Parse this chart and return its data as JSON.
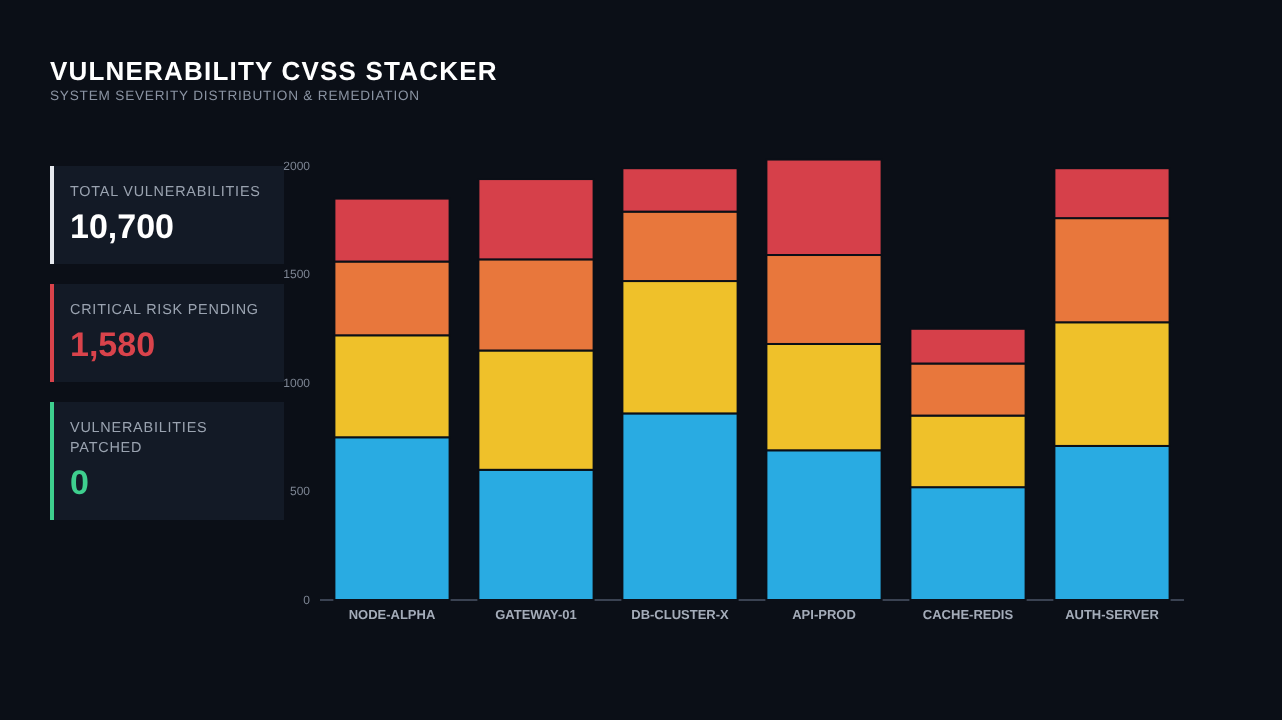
{
  "chart_data": [
    {
      "type": "other",
      "annotations": [
        "TOTAL VULNERABILITIES",
        "10,700",
        "CRITICAL RISK PENDING",
        "1,580",
        "VULNERABILITIES PATCHED",
        "0"
      ]
    },
    {
      "type": "bar",
      "title": "VULNERABILITY CVSS STACKER",
      "subtitle": "SYSTEM SEVERITY DISTRIBUTION & REMEDIATION",
      "categories": [
        "NODE-ALPHA",
        "GATEWAY-01",
        "DB-CLUSTER-X",
        "API-PROD",
        "CACHE-REDIS",
        "AUTH-SERVER"
      ],
      "stacked": true,
      "series": [
        {
          "color": "#29abe2",
          "values": [
            750,
            600,
            860,
            690,
            520,
            710
          ]
        },
        {
          "color": "#efc12a",
          "values": [
            470,
            550,
            610,
            490,
            330,
            570
          ]
        },
        {
          "color": "#e8773c",
          "values": [
            340,
            420,
            320,
            410,
            240,
            480
          ]
        },
        {
          "color": "#d6404a",
          "values": [
            290,
            370,
            200,
            440,
            160,
            230
          ]
        }
      ],
      "ylim": [
        0,
        2050
      ],
      "yticks": [
        0,
        500,
        1000,
        1500,
        2000
      ],
      "grid": false
    }
  ]
}
